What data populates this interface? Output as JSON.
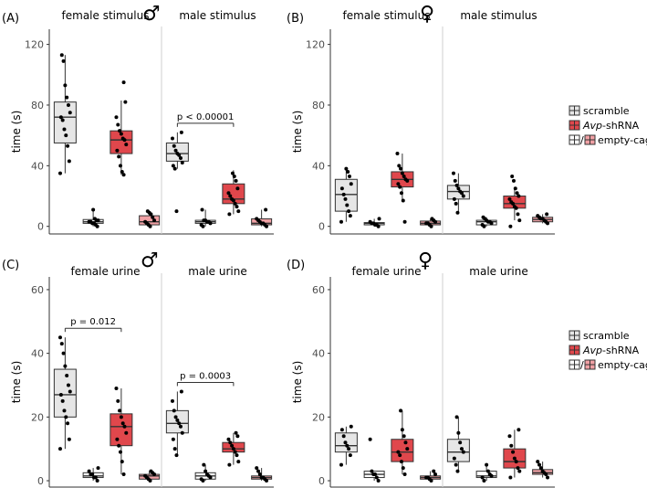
{
  "colors": {
    "scramble": "#e6e6e6",
    "shrna": "#e0474c",
    "box_line": "#333333",
    "axis": "#333333",
    "tick_text": "#4d4d4d",
    "divider": "#cfcfcf"
  },
  "legend": {
    "scramble": "scramble",
    "shrna_italic": "Avp",
    "shrna_suffix": "-shRNA",
    "empty_cage": "empty-cage",
    "empty_cage_sep": "/"
  },
  "chart_data": [
    {
      "panel_label": "(A)",
      "symbol": "♂",
      "type": "box",
      "ylabel": "time (s)",
      "ylim": [
        -5,
        130
      ],
      "yticks": [
        0,
        40,
        80,
        120
      ],
      "facets": [
        {
          "title": "female stimulus",
          "boxes": [
            {
              "group": "scramble",
              "min": 35,
              "q1": 55,
              "median": 72,
              "q3": 82,
              "max": 113,
              "points": [
                35,
                43,
                53,
                60,
                64,
                70,
                72,
                75,
                80,
                85,
                93,
                109,
                113
              ]
            },
            {
              "group": "scramble-empty-cage",
              "min": 0,
              "q1": 2,
              "median": 3,
              "q3": 4.5,
              "max": 11,
              "points": [
                0,
                1,
                2,
                2,
                3,
                3,
                4,
                4,
                5,
                11
              ]
            },
            {
              "group": "shRNA",
              "min": 34,
              "q1": 48,
              "median": 57,
              "q3": 63,
              "max": 83,
              "points": [
                34,
                36,
                40,
                46,
                50,
                54,
                57,
                58,
                61,
                63,
                67,
                72,
                82,
                95
              ]
            },
            {
              "group": "shRNA-empty-cage",
              "min": 0,
              "q1": 1,
              "median": 3,
              "q3": 7,
              "max": 10,
              "points": [
                0,
                1,
                2,
                3,
                4,
                6,
                8,
                9,
                10
              ]
            }
          ]
        },
        {
          "title": "male stimulus",
          "annotation": "p < 0.00001",
          "boxes": [
            {
              "group": "scramble",
              "min": 38,
              "q1": 43,
              "median": 48,
              "q3": 55,
              "max": 62,
              "points": [
                10,
                38,
                40,
                42,
                45,
                47,
                48,
                50,
                53,
                58,
                62
              ]
            },
            {
              "group": "scramble-empty-cage",
              "min": 0,
              "q1": 2,
              "median": 3,
              "q3": 4,
              "max": 11,
              "points": [
                0,
                1,
                2,
                3,
                3,
                4,
                4,
                11
              ]
            },
            {
              "group": "shRNA",
              "min": 8,
              "q1": 15,
              "median": 18,
              "q3": 28,
              "max": 37,
              "points": [
                8,
                10,
                13,
                15,
                17,
                18,
                20,
                22,
                25,
                30,
                33,
                35
              ]
            },
            {
              "group": "shRNA-empty-cage",
              "min": 0,
              "q1": 1,
              "median": 2,
              "q3": 5,
              "max": 11,
              "points": [
                0,
                1,
                2,
                2,
                3,
                4,
                5,
                11
              ]
            }
          ]
        }
      ]
    },
    {
      "panel_label": "(B)",
      "symbol": "♀",
      "type": "box",
      "ylabel": "time (s)",
      "ylim": [
        -5,
        130
      ],
      "yticks": [
        0,
        40,
        80,
        120
      ],
      "facets": [
        {
          "title": "female stimulus",
          "boxes": [
            {
              "group": "scramble",
              "min": 3,
              "q1": 10,
              "median": 21,
              "q3": 31,
              "max": 39,
              "points": [
                3,
                7,
                10,
                14,
                18,
                21,
                25,
                28,
                33,
                36,
                38
              ]
            },
            {
              "group": "scramble-empty-cage",
              "min": 0,
              "q1": 1,
              "median": 2,
              "q3": 2.5,
              "max": 5,
              "points": [
                0,
                1,
                1,
                2,
                2,
                3,
                5
              ]
            },
            {
              "group": "shRNA",
              "min": 17,
              "q1": 26,
              "median": 31,
              "q3": 36,
              "max": 48,
              "points": [
                3,
                17,
                22,
                26,
                28,
                30,
                31,
                33,
                35,
                38,
                40,
                48
              ]
            },
            {
              "group": "shRNA-empty-cage",
              "min": 0,
              "q1": 1,
              "median": 2,
              "q3": 3.5,
              "max": 5,
              "points": [
                0,
                1,
                2,
                2,
                3,
                4,
                5
              ]
            }
          ]
        },
        {
          "title": "male stimulus",
          "boxes": [
            {
              "group": "scramble",
              "min": 9,
              "q1": 18,
              "median": 23,
              "q3": 27,
              "max": 35,
              "points": [
                9,
                15,
                18,
                20,
                22,
                23,
                25,
                27,
                30,
                35
              ]
            },
            {
              "group": "scramble-empty-cage",
              "min": 0,
              "q1": 1,
              "median": 3,
              "q3": 4,
              "max": 6,
              "points": [
                0,
                1,
                2,
                3,
                3,
                4,
                5,
                6
              ]
            },
            {
              "group": "shRNA",
              "min": 4,
              "q1": 12,
              "median": 15,
              "q3": 20,
              "max": 26,
              "points": [
                0,
                4,
                8,
                12,
                13,
                15,
                16,
                18,
                20,
                22,
                25,
                30,
                33
              ]
            },
            {
              "group": "shRNA-empty-cage",
              "min": 2,
              "q1": 3,
              "median": 4.5,
              "q3": 6,
              "max": 8,
              "points": [
                2,
                3,
                4,
                5,
                5,
                6,
                7,
                8
              ]
            }
          ]
        }
      ]
    },
    {
      "panel_label": "(C)",
      "symbol": "♂",
      "type": "box",
      "ylabel": "time (s)",
      "ylim": [
        -2,
        64
      ],
      "yticks": [
        0,
        20,
        40,
        60
      ],
      "facets": [
        {
          "title": "female urine",
          "annotation": "p = 0.012",
          "boxes": [
            {
              "group": "scramble",
              "min": 10,
              "q1": 20,
              "median": 27,
              "q3": 35,
              "max": 45,
              "points": [
                10,
                13,
                18,
                20,
                22,
                25,
                27,
                28,
                30,
                33,
                36,
                40,
                43,
                45
              ]
            },
            {
              "group": "scramble-empty-cage",
              "min": 0,
              "q1": 1,
              "median": 1.5,
              "q3": 2.5,
              "max": 4,
              "points": [
                0,
                1,
                1,
                2,
                2,
                3,
                4
              ]
            },
            {
              "group": "shRNA",
              "min": 2,
              "q1": 11,
              "median": 17,
              "q3": 21,
              "max": 29,
              "points": [
                2,
                6,
                9,
                11,
                13,
                15,
                17,
                18,
                20,
                22,
                25,
                29
              ]
            },
            {
              "group": "shRNA-empty-cage",
              "min": 0,
              "q1": 0.5,
              "median": 1.5,
              "q3": 2,
              "max": 3,
              "points": [
                0,
                0.5,
                1,
                1.5,
                2,
                2.5,
                3
              ]
            }
          ]
        },
        {
          "title": "male urine",
          "annotation": "p = 0.0003",
          "boxes": [
            {
              "group": "scramble",
              "min": 8,
              "q1": 15,
              "median": 18,
              "q3": 22,
              "max": 28,
              "points": [
                8,
                10,
                13,
                15,
                17,
                18,
                19,
                20,
                22,
                25,
                28
              ]
            },
            {
              "group": "scramble-empty-cage",
              "min": 0,
              "q1": 0.5,
              "median": 1.5,
              "q3": 2.5,
              "max": 5,
              "points": [
                0,
                0.5,
                1,
                1.5,
                2,
                3,
                5
              ]
            },
            {
              "group": "shRNA",
              "min": 5,
              "q1": 9,
              "median": 10,
              "q3": 12,
              "max": 15,
              "points": [
                5,
                6,
                8,
                9,
                10,
                11,
                12,
                13,
                14,
                15
              ]
            },
            {
              "group": "shRNA-empty-cage",
              "min": 0,
              "q1": 0.5,
              "median": 1,
              "q3": 1.5,
              "max": 4,
              "points": [
                0,
                0.5,
                1,
                1,
                2,
                3,
                4
              ]
            }
          ]
        }
      ]
    },
    {
      "panel_label": "(D)",
      "symbol": "♀",
      "type": "box",
      "ylabel": "time (s)",
      "ylim": [
        -2,
        64
      ],
      "yticks": [
        0,
        20,
        40,
        60
      ],
      "facets": [
        {
          "title": "female urine",
          "boxes": [
            {
              "group": "scramble",
              "min": 5,
              "q1": 9,
              "median": 11,
              "q3": 15,
              "max": 17,
              "points": [
                5,
                8,
                10,
                11,
                12,
                14,
                16,
                17
              ]
            },
            {
              "group": "scramble-empty-cage",
              "min": 0,
              "q1": 1,
              "median": 2,
              "q3": 3,
              "max": 3,
              "points": [
                0,
                1,
                2,
                2,
                3,
                13
              ]
            },
            {
              "group": "shRNA",
              "min": 2,
              "q1": 6,
              "median": 9,
              "q3": 13,
              "max": 22,
              "points": [
                2,
                4,
                6,
                8,
                9,
                10,
                12,
                14,
                16,
                22
              ]
            },
            {
              "group": "shRNA-empty-cage",
              "min": 0,
              "q1": 0.5,
              "median": 1,
              "q3": 1.5,
              "max": 3,
              "points": [
                0,
                0.5,
                1,
                1,
                2,
                3
              ]
            }
          ]
        },
        {
          "title": "male urine",
          "boxes": [
            {
              "group": "scramble",
              "min": 3,
              "q1": 6,
              "median": 9,
              "q3": 13,
              "max": 20,
              "points": [
                3,
                5,
                7,
                9,
                10,
                12,
                15,
                20
              ]
            },
            {
              "group": "scramble-empty-cage",
              "min": 0,
              "q1": 1,
              "median": 1.5,
              "q3": 3,
              "max": 5,
              "points": [
                0,
                1,
                1.5,
                2,
                3,
                5
              ]
            },
            {
              "group": "shRNA",
              "min": 1,
              "q1": 4,
              "median": 6,
              "q3": 10,
              "max": 16,
              "points": [
                1,
                3,
                4,
                6,
                7,
                9,
                11,
                14,
                16
              ]
            },
            {
              "group": "shRNA-empty-cage",
              "min": 1,
              "q1": 2,
              "median": 2.5,
              "q3": 3.5,
              "max": 6,
              "points": [
                1,
                2,
                2.5,
                3,
                4,
                5,
                6
              ]
            }
          ]
        }
      ]
    }
  ]
}
